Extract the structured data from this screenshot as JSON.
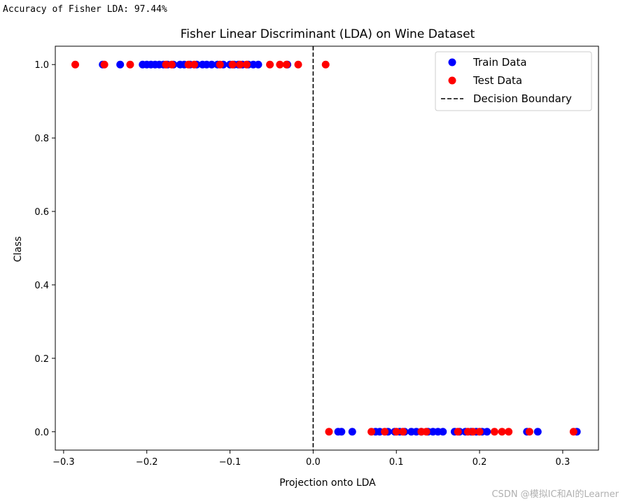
{
  "console": {
    "accuracy_line": "Accuracy of Fisher LDA: 97.44%"
  },
  "watermark": "CSDN @模拟IC和AI的Learner",
  "chart_data": {
    "type": "scatter",
    "title": "Fisher Linear Discriminant (LDA) on Wine Dataset",
    "xlabel": "Projection onto LDA",
    "ylabel": "Class",
    "xlim": [
      -0.31,
      0.343
    ],
    "ylim": [
      -0.05,
      1.05
    ],
    "xticks": [
      -0.3,
      -0.2,
      -0.1,
      0.0,
      0.1,
      0.2,
      0.3
    ],
    "xtick_labels": [
      "−0.3",
      "−0.2",
      "−0.1",
      "0.0",
      "0.1",
      "0.2",
      "0.3"
    ],
    "yticks": [
      0.0,
      0.2,
      0.4,
      0.6,
      0.8,
      1.0
    ],
    "ytick_labels": [
      "0.0",
      "0.2",
      "0.4",
      "0.6",
      "0.8",
      "1.0"
    ],
    "grid": false,
    "legend_position": "top-right",
    "decision_boundary": {
      "name": "Decision Boundary",
      "x": 0.0,
      "color": "#000000",
      "style": "dashed"
    },
    "series": [
      {
        "name": "Train Data",
        "color": "#0000ff",
        "points": [
          {
            "x": -0.253,
            "y": 1
          },
          {
            "x": -0.232,
            "y": 1
          },
          {
            "x": -0.205,
            "y": 1
          },
          {
            "x": -0.2,
            "y": 1
          },
          {
            "x": -0.195,
            "y": 1
          },
          {
            "x": -0.19,
            "y": 1
          },
          {
            "x": -0.185,
            "y": 1
          },
          {
            "x": -0.18,
            "y": 1
          },
          {
            "x": -0.175,
            "y": 1
          },
          {
            "x": -0.168,
            "y": 1
          },
          {
            "x": -0.16,
            "y": 1
          },
          {
            "x": -0.155,
            "y": 1
          },
          {
            "x": -0.148,
            "y": 1
          },
          {
            "x": -0.14,
            "y": 1
          },
          {
            "x": -0.133,
            "y": 1
          },
          {
            "x": -0.128,
            "y": 1
          },
          {
            "x": -0.122,
            "y": 1
          },
          {
            "x": -0.115,
            "y": 1
          },
          {
            "x": -0.108,
            "y": 1
          },
          {
            "x": -0.1,
            "y": 1
          },
          {
            "x": -0.095,
            "y": 1
          },
          {
            "x": -0.09,
            "y": 1
          },
          {
            "x": -0.085,
            "y": 1
          },
          {
            "x": -0.078,
            "y": 1
          },
          {
            "x": -0.072,
            "y": 1
          },
          {
            "x": -0.066,
            "y": 1
          },
          {
            "x": -0.031,
            "y": 1
          },
          {
            "x": 0.03,
            "y": 0
          },
          {
            "x": 0.034,
            "y": 0
          },
          {
            "x": 0.047,
            "y": 0
          },
          {
            "x": 0.075,
            "y": 0
          },
          {
            "x": 0.08,
            "y": 0
          },
          {
            "x": 0.09,
            "y": 0
          },
          {
            "x": 0.098,
            "y": 0
          },
          {
            "x": 0.104,
            "y": 0
          },
          {
            "x": 0.11,
            "y": 0
          },
          {
            "x": 0.118,
            "y": 0
          },
          {
            "x": 0.124,
            "y": 0
          },
          {
            "x": 0.13,
            "y": 0
          },
          {
            "x": 0.138,
            "y": 0
          },
          {
            "x": 0.144,
            "y": 0
          },
          {
            "x": 0.15,
            "y": 0
          },
          {
            "x": 0.156,
            "y": 0
          },
          {
            "x": 0.17,
            "y": 0
          },
          {
            "x": 0.176,
            "y": 0
          },
          {
            "x": 0.183,
            "y": 0
          },
          {
            "x": 0.19,
            "y": 0
          },
          {
            "x": 0.196,
            "y": 0
          },
          {
            "x": 0.203,
            "y": 0
          },
          {
            "x": 0.209,
            "y": 0
          },
          {
            "x": 0.257,
            "y": 0
          },
          {
            "x": 0.27,
            "y": 0
          },
          {
            "x": 0.317,
            "y": 0
          }
        ]
      },
      {
        "name": "Test Data",
        "color": "#ff0000",
        "points": [
          {
            "x": -0.286,
            "y": 1
          },
          {
            "x": -0.251,
            "y": 1
          },
          {
            "x": -0.22,
            "y": 1
          },
          {
            "x": -0.177,
            "y": 1
          },
          {
            "x": -0.17,
            "y": 1
          },
          {
            "x": -0.15,
            "y": 1
          },
          {
            "x": -0.143,
            "y": 1
          },
          {
            "x": -0.112,
            "y": 1
          },
          {
            "x": -0.097,
            "y": 1
          },
          {
            "x": -0.088,
            "y": 1
          },
          {
            "x": -0.08,
            "y": 1
          },
          {
            "x": -0.052,
            "y": 1
          },
          {
            "x": -0.04,
            "y": 1
          },
          {
            "x": -0.032,
            "y": 1
          },
          {
            "x": -0.018,
            "y": 1
          },
          {
            "x": 0.015,
            "y": 1
          },
          {
            "x": 0.019,
            "y": 0
          },
          {
            "x": 0.07,
            "y": 0
          },
          {
            "x": 0.086,
            "y": 0
          },
          {
            "x": 0.1,
            "y": 0
          },
          {
            "x": 0.108,
            "y": 0
          },
          {
            "x": 0.13,
            "y": 0
          },
          {
            "x": 0.136,
            "y": 0
          },
          {
            "x": 0.174,
            "y": 0
          },
          {
            "x": 0.186,
            "y": 0
          },
          {
            "x": 0.192,
            "y": 0
          },
          {
            "x": 0.2,
            "y": 0
          },
          {
            "x": 0.218,
            "y": 0
          },
          {
            "x": 0.227,
            "y": 0
          },
          {
            "x": 0.235,
            "y": 0
          },
          {
            "x": 0.26,
            "y": 0
          },
          {
            "x": 0.313,
            "y": 0
          }
        ]
      }
    ]
  }
}
